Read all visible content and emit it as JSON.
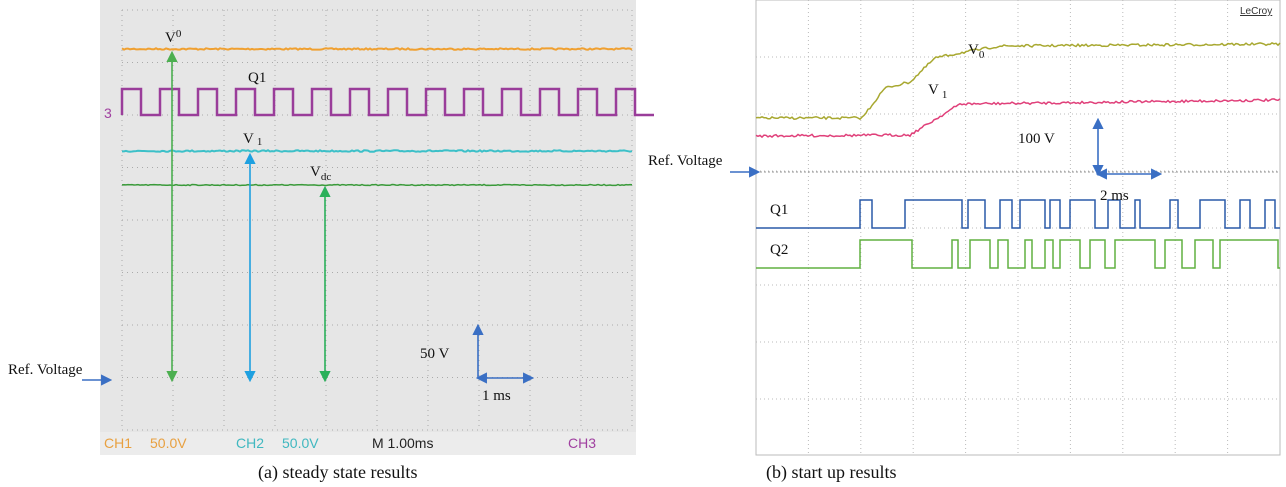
{
  "panel_a": {
    "labels": {
      "v0": {
        "symbol": "V",
        "subscript": "0"
      },
      "q1": "Q1",
      "v1": {
        "symbol": "V",
        "subscript": "1"
      },
      "vdc": {
        "symbol": "V",
        "subscript": "dc"
      },
      "ref": "Ref. Voltage",
      "volt_scale": "50 V",
      "time_scale": "1 ms",
      "marker": "3"
    },
    "status": {
      "ch1": "CH1",
      "ch1_scale": "50.0V",
      "ch2": "CH2",
      "ch2_scale": "50.0V",
      "timebase": "M 1.00ms",
      "ch3": "CH3"
    },
    "caption": "(a) steady state results"
  },
  "panel_b": {
    "brand": "LeCroy",
    "labels": {
      "v0": {
        "symbol": "V",
        "subscript": "0"
      },
      "v1": {
        "symbol": "V",
        "subscript": "1"
      },
      "ref": "Ref. Voltage",
      "volt_scale": "100 V",
      "time_scale": "2 ms",
      "q1": "Q1",
      "q2": "Q2"
    },
    "caption": "(b) start up results"
  }
}
